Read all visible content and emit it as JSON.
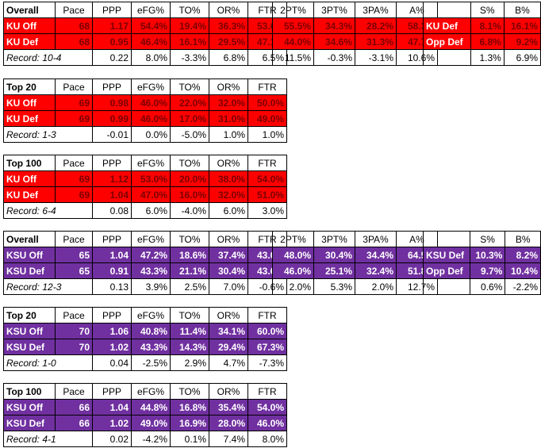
{
  "ku": {
    "overall": {
      "title": "Overall",
      "headers": [
        "Pace",
        "PPP",
        "eFG%",
        "TO%",
        "OR%",
        "FTR"
      ],
      "rows": [
        {
          "label": "KU Off",
          "values": [
            "68",
            "1.17",
            "54.4%",
            "19.4%",
            "36.3%",
            "53.6%"
          ]
        },
        {
          "label": "KU Def",
          "values": [
            "68",
            "0.95",
            "46.4%",
            "16.1%",
            "29.5%",
            "47.1%"
          ]
        }
      ],
      "record": "Record: 10-4",
      "diff": [
        "0.22",
        "8.0%",
        "-3.3%",
        "6.8%",
        "6.5%"
      ],
      "shooting": {
        "headers": [
          "2PT%",
          "3PT%",
          "3PA%",
          "A%"
        ],
        "rows": [
          [
            "55.5%",
            "34.3%",
            "28.2%",
            "58.3%"
          ],
          [
            "44.0%",
            "34.6%",
            "31.3%",
            "47.7%"
          ]
        ],
        "diff": [
          "11.5%",
          "-0.3%",
          "-3.1%",
          "10.6%"
        ]
      },
      "blocks": {
        "headers": [
          "S%",
          "B%"
        ],
        "rows": [
          {
            "label": "KU Def",
            "values": [
              "8.1%",
              "16.1%"
            ]
          },
          {
            "label": "Opp Def",
            "values": [
              "6.8%",
              "9.2%"
            ]
          }
        ],
        "diff": [
          "1.3%",
          "6.9%"
        ]
      }
    },
    "top20": {
      "title": "Top 20",
      "headers": [
        "Pace",
        "PPP",
        "eFG%",
        "TO%",
        "OR%",
        "FTR"
      ],
      "rows": [
        {
          "label": "KU Off",
          "values": [
            "69",
            "0.98",
            "46.0%",
            "22.0%",
            "32.0%",
            "50.0%"
          ]
        },
        {
          "label": "KU Def",
          "values": [
            "69",
            "0.99",
            "46.0%",
            "17.0%",
            "31.0%",
            "49.0%"
          ]
        }
      ],
      "record": "Record: 1-3",
      "diff": [
        "-0.01",
        "0.0%",
        "-5.0%",
        "1.0%",
        "1.0%"
      ]
    },
    "top100": {
      "title": "Top 100",
      "headers": [
        "Pace",
        "PPP",
        "eFG%",
        "TO%",
        "OR%",
        "FTR"
      ],
      "rows": [
        {
          "label": "KU Off",
          "values": [
            "69",
            "1.12",
            "53.0%",
            "20.0%",
            "38.0%",
            "54.0%"
          ]
        },
        {
          "label": "KU Def",
          "values": [
            "69",
            "1.04",
            "47.0%",
            "16.0%",
            "32.0%",
            "51.0%"
          ]
        }
      ],
      "record": "Record: 6-4",
      "diff": [
        "0.08",
        "6.0%",
        "-4.0%",
        "6.0%",
        "3.0%"
      ]
    }
  },
  "ksu": {
    "overall": {
      "title": "Overall",
      "headers": [
        "Pace",
        "PPP",
        "eFG%",
        "TO%",
        "OR%",
        "FTR"
      ],
      "rows": [
        {
          "label": "KSU Off",
          "values": [
            "65",
            "1.04",
            "47.2%",
            "18.6%",
            "37.4%",
            "43.0%"
          ]
        },
        {
          "label": "KSU Def",
          "values": [
            "65",
            "0.91",
            "43.3%",
            "21.1%",
            "30.4%",
            "43.6%"
          ]
        }
      ],
      "record": "Record: 12-3",
      "diff": [
        "0.13",
        "3.9%",
        "2.5%",
        "7.0%",
        "-0.6%"
      ],
      "shooting": {
        "headers": [
          "2PT%",
          "3PT%",
          "3PA%",
          "A%"
        ],
        "rows": [
          [
            "48.0%",
            "30.4%",
            "34.4%",
            "64.5%"
          ],
          [
            "46.0%",
            "25.1%",
            "32.4%",
            "51.8%"
          ]
        ],
        "diff": [
          "2.0%",
          "5.3%",
          "2.0%",
          "12.7%"
        ]
      },
      "blocks": {
        "headers": [
          "S%",
          "B%"
        ],
        "rows": [
          {
            "label": "KSU Def",
            "values": [
              "10.3%",
              "8.2%"
            ]
          },
          {
            "label": "Opp Def",
            "values": [
              "9.7%",
              "10.4%"
            ]
          }
        ],
        "diff": [
          "0.6%",
          "-2.2%"
        ]
      }
    },
    "top20": {
      "title": "Top 20",
      "headers": [
        "Pace",
        "PPP",
        "eFG%",
        "TO%",
        "OR%",
        "FTR"
      ],
      "rows": [
        {
          "label": "KSU Off",
          "values": [
            "70",
            "1.06",
            "40.8%",
            "11.4%",
            "34.1%",
            "60.0%"
          ]
        },
        {
          "label": "KSU Def",
          "values": [
            "70",
            "1.02",
            "43.3%",
            "14.3%",
            "29.4%",
            "67.3%"
          ]
        }
      ],
      "record": "Record: 1-0",
      "diff": [
        "0.04",
        "-2.5%",
        "2.9%",
        "4.7%",
        "-7.3%"
      ]
    },
    "top100": {
      "title": "Top 100",
      "headers": [
        "Pace",
        "PPP",
        "eFG%",
        "TO%",
        "OR%",
        "FTR"
      ],
      "rows": [
        {
          "label": "KSU Off",
          "values": [
            "66",
            "1.04",
            "44.8%",
            "16.8%",
            "35.4%",
            "54.0%"
          ]
        },
        {
          "label": "KSU Def",
          "values": [
            "66",
            "1.02",
            "49.0%",
            "16.9%",
            "28.0%",
            "46.0%"
          ]
        }
      ],
      "record": "Record: 4-1",
      "diff": [
        "0.02",
        "-4.2%",
        "0.1%",
        "7.4%",
        "8.0%"
      ]
    }
  },
  "colors": {
    "ku_fill": "#ff0000",
    "ku_text": "#7a0000",
    "ksu_fill": "#7030a0",
    "ksu_text": "#ffffff"
  }
}
